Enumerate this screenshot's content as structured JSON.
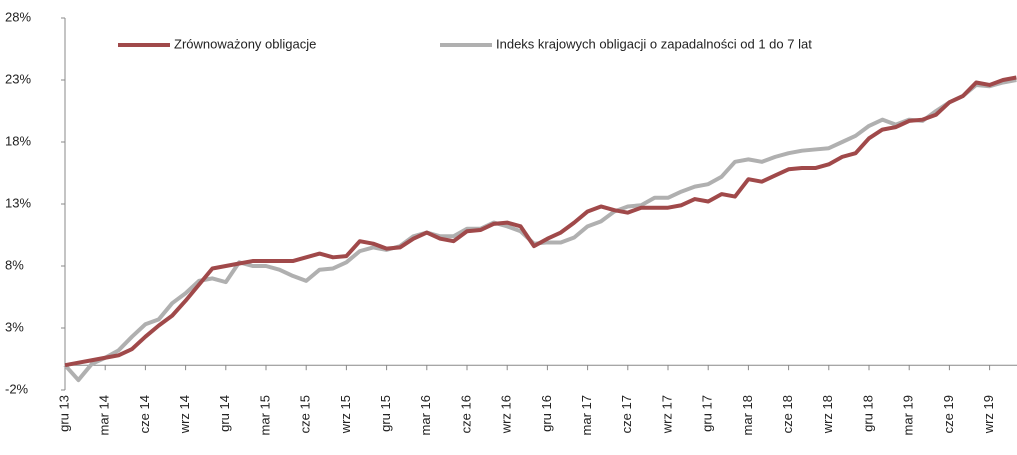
{
  "chart_data": {
    "type": "line",
    "categories": [
      "gru 13",
      null,
      null,
      "mar 14",
      null,
      null,
      "cze 14",
      null,
      null,
      "wrz 14",
      null,
      null,
      "gru 14",
      null,
      null,
      "mar 15",
      null,
      null,
      "cze 15",
      null,
      null,
      "wrz 15",
      null,
      null,
      "gru 15",
      null,
      null,
      "mar 16",
      null,
      null,
      "cze 16",
      null,
      null,
      "wrz 16",
      null,
      null,
      "gru 16",
      null,
      null,
      "mar 17",
      null,
      null,
      "cze 17",
      null,
      null,
      "wrz 17",
      null,
      null,
      "gru 17",
      null,
      null,
      "mar 18",
      null,
      null,
      "cze 18",
      null,
      null,
      "wrz 18",
      null,
      null,
      "gru 18",
      null,
      null,
      "mar 19",
      null,
      null,
      "cze 19",
      null,
      null,
      "wrz 19",
      null,
      null
    ],
    "series": [
      {
        "name": "Zrównoważony obligacje",
        "color": "#a0494a",
        "values": [
          0,
          0.2,
          0.4,
          0.6,
          0.8,
          1.3,
          2.3,
          3.2,
          4.0,
          5.2,
          6.5,
          7.8,
          8.0,
          8.2,
          8.4,
          8.4,
          8.4,
          8.4,
          8.7,
          9.0,
          8.7,
          8.8,
          10.0,
          9.8,
          9.4,
          9.5,
          10.2,
          10.7,
          10.2,
          10.0,
          10.8,
          10.9,
          11.4,
          11.5,
          11.2,
          9.6,
          10.2,
          10.7,
          11.5,
          12.4,
          12.8,
          12.5,
          12.3,
          12.7,
          12.7,
          12.7,
          12.9,
          13.4,
          13.2,
          13.8,
          13.6,
          15.0,
          14.8,
          15.3,
          15.8,
          15.9,
          15.9,
          16.2,
          16.8,
          17.1,
          18.3,
          19.0,
          19.2,
          19.7,
          19.8,
          20.2,
          21.2,
          21.7,
          22.8,
          22.6,
          23.0,
          23.2
        ]
      },
      {
        "name": "Indeks krajowych obligacji o zapadalności od 1 do 7 lat",
        "color": "#b0b0b0",
        "values": [
          0,
          -1.2,
          0.1,
          0.6,
          1.2,
          2.3,
          3.3,
          3.7,
          5.0,
          5.8,
          6.8,
          7.0,
          6.7,
          8.3,
          8.0,
          8.0,
          7.7,
          7.2,
          6.8,
          7.7,
          7.8,
          8.3,
          9.2,
          9.5,
          9.3,
          9.6,
          10.4,
          10.7,
          10.4,
          10.4,
          11.0,
          11.0,
          11.5,
          11.2,
          10.8,
          9.8,
          9.9,
          9.9,
          10.3,
          11.2,
          11.6,
          12.4,
          12.8,
          12.9,
          13.5,
          13.5,
          14.0,
          14.4,
          14.6,
          15.2,
          16.4,
          16.6,
          16.4,
          16.8,
          17.1,
          17.3,
          17.4,
          17.5,
          18.0,
          18.5,
          19.3,
          19.8,
          19.4,
          19.8,
          19.7,
          20.5,
          21.2,
          21.7,
          22.6,
          22.5,
          22.8,
          23.0
        ]
      }
    ],
    "ylim": [
      -2,
      28
    ],
    "yticks": [
      {
        "value": -2,
        "label": "-2%"
      },
      {
        "value": 3,
        "label": "3%"
      },
      {
        "value": 8,
        "label": "8%"
      },
      {
        "value": 13,
        "label": "13%"
      },
      {
        "value": 18,
        "label": "18%"
      },
      {
        "value": 23,
        "label": "23%"
      },
      {
        "value": 28,
        "label": "28%"
      }
    ],
    "legend": "top"
  }
}
